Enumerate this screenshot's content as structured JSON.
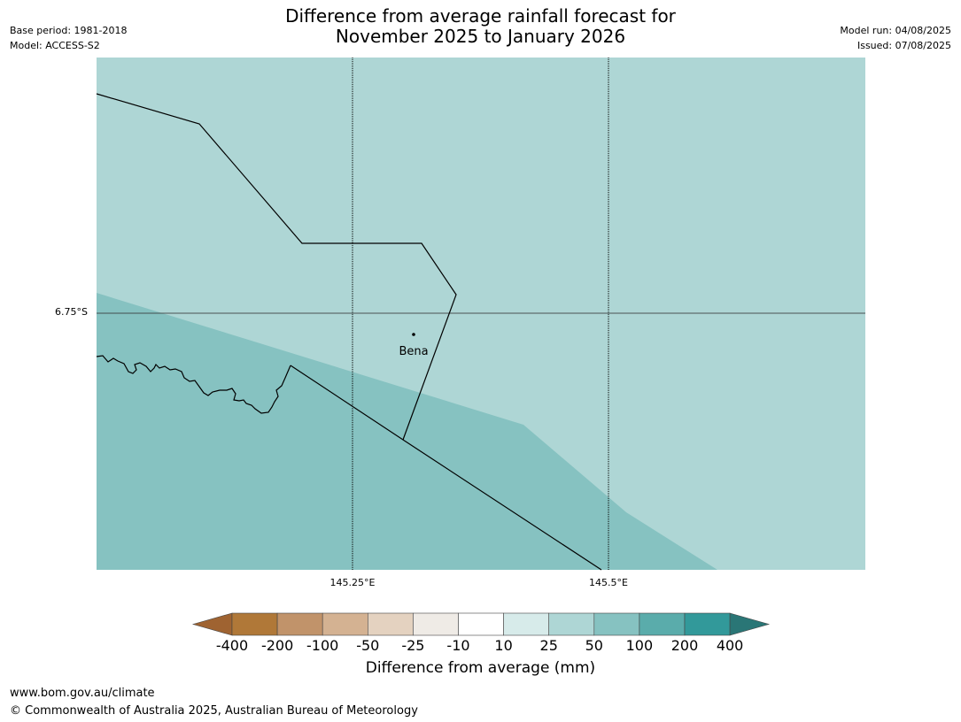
{
  "title": {
    "line1": "Difference from average rainfall forecast for",
    "line2": "November 2025 to January 2026"
  },
  "meta_left": {
    "base_period": "Base period: 1981-2018",
    "model": "Model: ACCESS-S2"
  },
  "meta_right": {
    "model_run": "Model run: 04/08/2025",
    "issued": "Issued: 07/08/2025"
  },
  "map": {
    "lat_label": "6.75°S",
    "lon_labels": [
      "145.25°E",
      "145.5°E"
    ],
    "place": "Bena",
    "colors": {
      "region_25_50": "#aed6d5",
      "region_50_100": "#86c2c1",
      "boundary": "#000000",
      "gridline": "#333333"
    }
  },
  "colorbar": {
    "ticks": [
      "-400",
      "-200",
      "-100",
      "-50",
      "-25",
      "-10",
      "10",
      "25",
      "50",
      "100",
      "200",
      "400"
    ],
    "colors": [
      "#9f6331",
      "#b07838",
      "#c1936a",
      "#d4b292",
      "#e4d2c0",
      "#efebe6",
      "#ffffff",
      "#d7ebea",
      "#aed6d5",
      "#86c2c1",
      "#5aacab",
      "#32999a",
      "#2a7676"
    ],
    "label": "Difference from average (mm)"
  },
  "footer": {
    "url": "www.bom.gov.au/climate",
    "copyright": "© Commonwealth of Australia 2025, Australian Bureau of Meteorology"
  }
}
